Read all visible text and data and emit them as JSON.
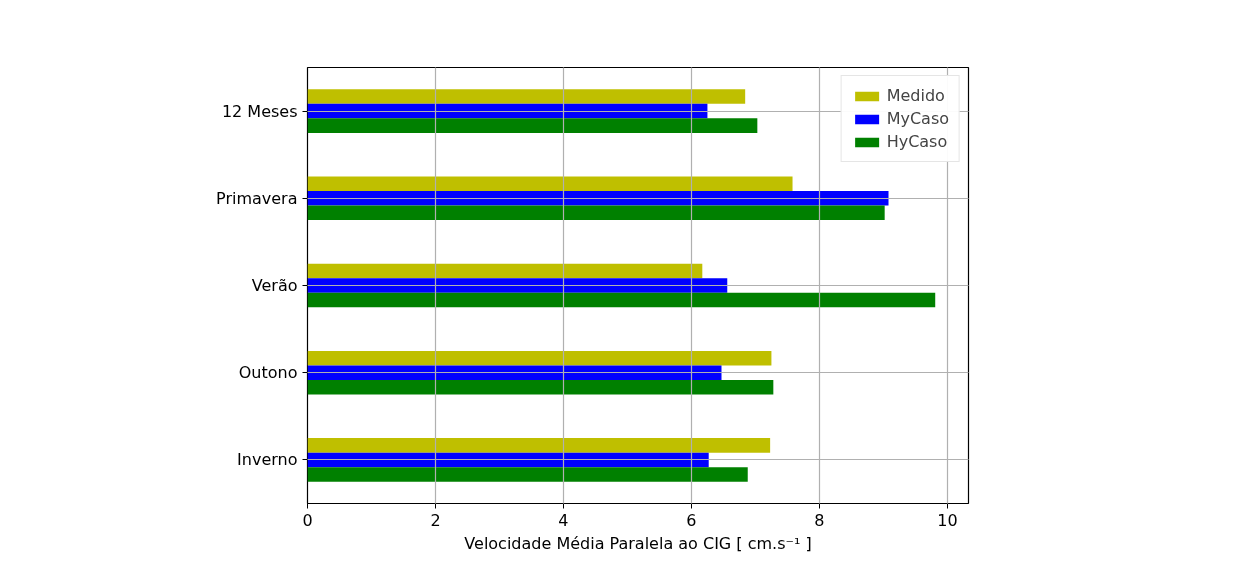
{
  "chart_data": {
    "type": "bar",
    "orientation": "horizontal",
    "categories": [
      "12 Meses",
      "Primavera",
      "Verão",
      "Outono",
      "Inverno"
    ],
    "series": [
      {
        "name": "Medido",
        "color": "#bfbf00",
        "values": [
          6.84,
          7.58,
          6.17,
          7.25,
          7.23
        ]
      },
      {
        "name": "MyCaso",
        "color": "#0000ff",
        "values": [
          6.25,
          9.08,
          6.56,
          6.47,
          6.27
        ]
      },
      {
        "name": "HyCaso",
        "color": "#008000",
        "values": [
          7.03,
          9.02,
          9.81,
          7.28,
          6.88
        ]
      }
    ],
    "xlabel": "Velocidade Média Paralela ao CIG [ cm.s⁻¹ ]",
    "xlim": [
      0,
      10.33
    ],
    "xticks": [
      0,
      2,
      4,
      6,
      8,
      10
    ],
    "grid": true,
    "legend": "top right"
  }
}
